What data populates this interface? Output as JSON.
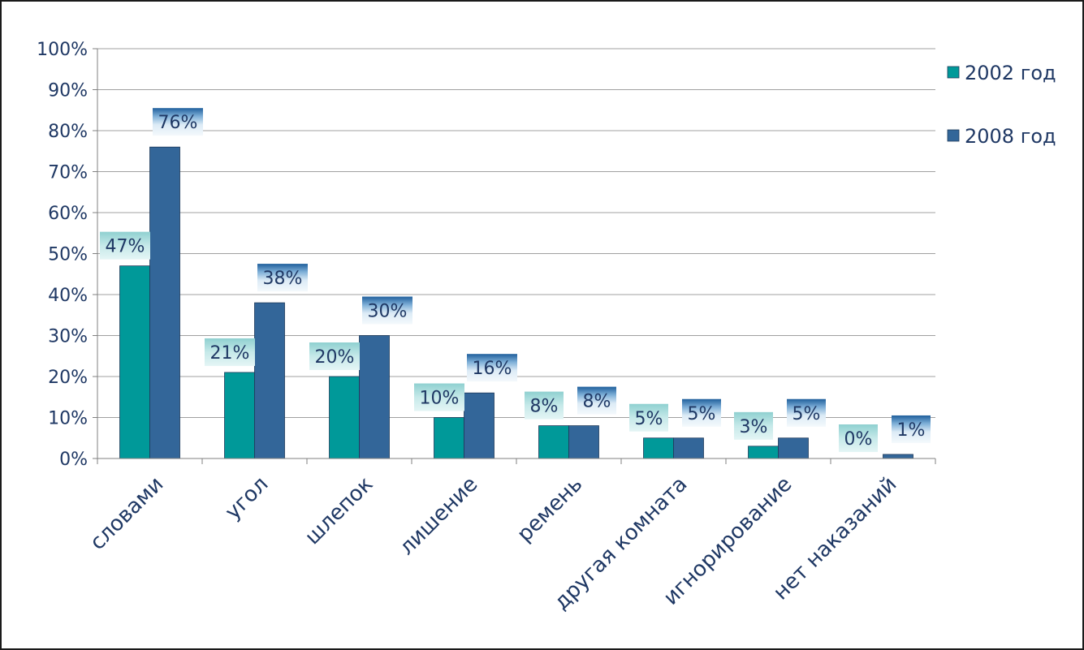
{
  "chart_data": {
    "type": "bar",
    "title": "",
    "xlabel": "",
    "ylabel": "",
    "ylim": [
      0,
      100
    ],
    "yticks": [
      "0%",
      "10%",
      "20%",
      "30%",
      "40%",
      "50%",
      "60%",
      "70%",
      "80%",
      "90%",
      "100%"
    ],
    "grid": true,
    "legend_position": "right",
    "categories": [
      "словами",
      "угол",
      "шлепок",
      "лишение",
      "ремень",
      "другая комната",
      "игнорирование",
      "нет  наказаний"
    ],
    "series": [
      {
        "name": "2002 год",
        "color": "#009999",
        "values": [
          47,
          21,
          20,
          10,
          8,
          5,
          3,
          0
        ],
        "labels": [
          "47%",
          "21%",
          "20%",
          "10%",
          "8%",
          "5%",
          "3%",
          "0%"
        ]
      },
      {
        "name": "2008 год",
        "color": "#336699",
        "values": [
          76,
          38,
          30,
          16,
          8,
          5,
          5,
          1
        ],
        "labels": [
          "76%",
          "38%",
          "30%",
          "16%",
          "8%",
          "5%",
          "5%",
          "1%"
        ]
      }
    ]
  }
}
